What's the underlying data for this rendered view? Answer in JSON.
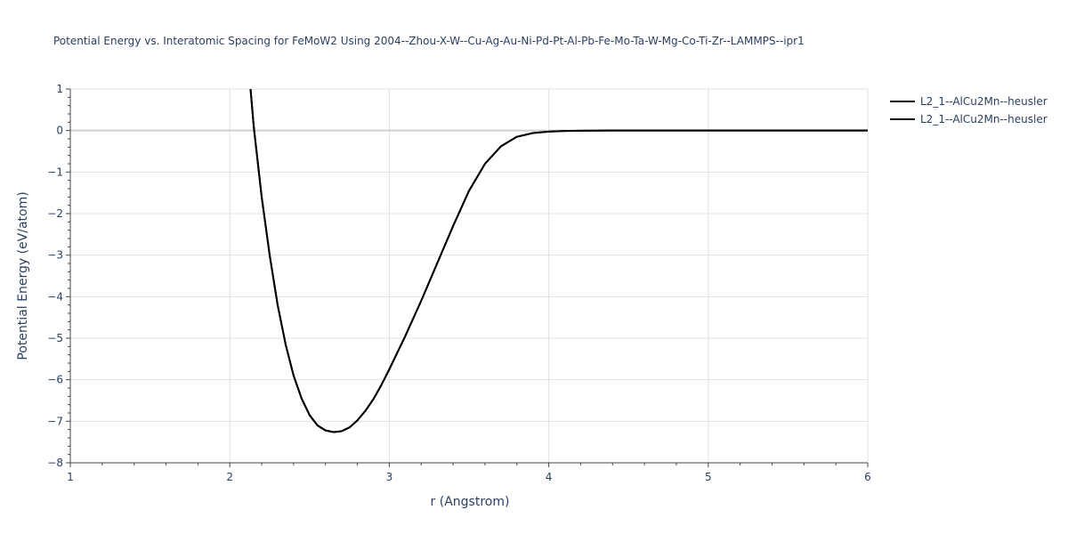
{
  "chart_data": {
    "type": "line",
    "title": "Potential Energy vs. Interatomic Spacing for FeMoW2 Using 2004--Zhou-X-W--Cu-Ag-Au-Ni-Pd-Pt-Al-Pb-Fe-Mo-Ta-W-Mg-Co-Ti-Zr--LAMMPS--ipr1",
    "xlabel": "r (Angstrom)",
    "ylabel": "Potential Energy (eV/atom)",
    "xlim": [
      1,
      6
    ],
    "ylim": [
      -8,
      1
    ],
    "xticks": [
      "1",
      "2",
      "3",
      "4",
      "5",
      "6"
    ],
    "yticks": [
      "1",
      "0",
      "−1",
      "−2",
      "−3",
      "−4",
      "−5",
      "−6",
      "−7",
      "−8"
    ],
    "grid": true,
    "legend_position": "top-right",
    "line_color": "#000000",
    "series": [
      {
        "name": "L2_1--AlCu2Mn--heusler",
        "x": [
          2.13,
          2.15,
          2.2,
          2.25,
          2.3,
          2.35,
          2.4,
          2.45,
          2.5,
          2.55,
          2.6,
          2.65,
          2.7,
          2.75,
          2.8,
          2.85,
          2.9,
          2.95,
          3.0,
          3.1,
          3.2,
          3.3,
          3.4,
          3.5,
          3.6,
          3.7,
          3.8,
          3.9,
          4.0,
          4.1,
          4.2,
          4.4,
          4.6,
          5.0,
          5.5,
          6.0
        ],
        "y": [
          1.0,
          0.1,
          -1.6,
          -3.0,
          -4.2,
          -5.15,
          -5.9,
          -6.45,
          -6.85,
          -7.1,
          -7.22,
          -7.26,
          -7.24,
          -7.15,
          -6.98,
          -6.75,
          -6.47,
          -6.13,
          -5.75,
          -4.95,
          -4.1,
          -3.2,
          -2.3,
          -1.45,
          -0.8,
          -0.38,
          -0.15,
          -0.06,
          -0.025,
          -0.01,
          -0.004,
          0.0,
          0.0,
          0.0,
          0.0,
          0.0
        ]
      },
      {
        "name": "L2_1--AlCu2Mn--heusler",
        "x": [
          2.13,
          2.15,
          2.2,
          2.25,
          2.3,
          2.35,
          2.4,
          2.45,
          2.5,
          2.55,
          2.6,
          2.65,
          2.7,
          2.75,
          2.8,
          2.85,
          2.9,
          2.95,
          3.0,
          3.1,
          3.2,
          3.3,
          3.4,
          3.5,
          3.6,
          3.7,
          3.8,
          3.9,
          4.0,
          4.1,
          4.2,
          4.4,
          4.6,
          5.0,
          5.5,
          6.0
        ],
        "y": [
          1.0,
          0.1,
          -1.6,
          -3.0,
          -4.2,
          -5.15,
          -5.9,
          -6.45,
          -6.85,
          -7.1,
          -7.22,
          -7.26,
          -7.24,
          -7.15,
          -6.98,
          -6.75,
          -6.47,
          -6.13,
          -5.75,
          -4.95,
          -4.1,
          -3.2,
          -2.3,
          -1.45,
          -0.8,
          -0.38,
          -0.15,
          -0.06,
          -0.025,
          -0.01,
          -0.004,
          0.0,
          0.0,
          0.0,
          0.0,
          0.0
        ]
      }
    ]
  }
}
